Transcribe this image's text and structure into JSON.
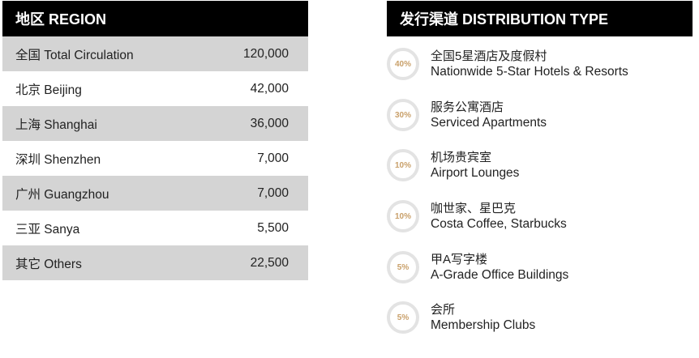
{
  "region": {
    "header": "地区  REGION",
    "rows": [
      {
        "label": "全国 Total Circulation",
        "value": "120,000"
      },
      {
        "label": "北京 Beijing",
        "value": "42,000"
      },
      {
        "label": "上海 Shanghai",
        "value": "36,000"
      },
      {
        "label": "深圳 Shenzhen",
        "value": "7,000"
      },
      {
        "label": "广州 Guangzhou",
        "value": "7,000"
      },
      {
        "label": "三亚 Sanya",
        "value": "5,500"
      },
      {
        "label": "其它 Others",
        "value": "22,500"
      }
    ]
  },
  "distribution": {
    "header": "发行渠道  DISTRIBUTION TYPE",
    "items": [
      {
        "percent": "40%",
        "cn": "全国5星酒店及度假村",
        "en": "Nationwide 5-Star Hotels & Resorts"
      },
      {
        "percent": "30%",
        "cn": "服务公寓酒店",
        "en": "Serviced Apartments"
      },
      {
        "percent": "10%",
        "cn": "机场贵宾室",
        "en": "Airport Lounges"
      },
      {
        "percent": "10%",
        "cn": "咖世家、星巴克",
        "en": "Costa Coffee, Starbucks"
      },
      {
        "percent": "5%",
        "cn": "甲A写字楼",
        "en": "A-Grade Office Buildings"
      },
      {
        "percent": "5%",
        "cn": "会所",
        "en": "Membership Clubs"
      }
    ]
  },
  "colors": {
    "header_bg": "#000000",
    "row_shaded": "#d4d4d4",
    "percent_text": "#c9a06a",
    "circle_ring": "#e3e3e3"
  }
}
